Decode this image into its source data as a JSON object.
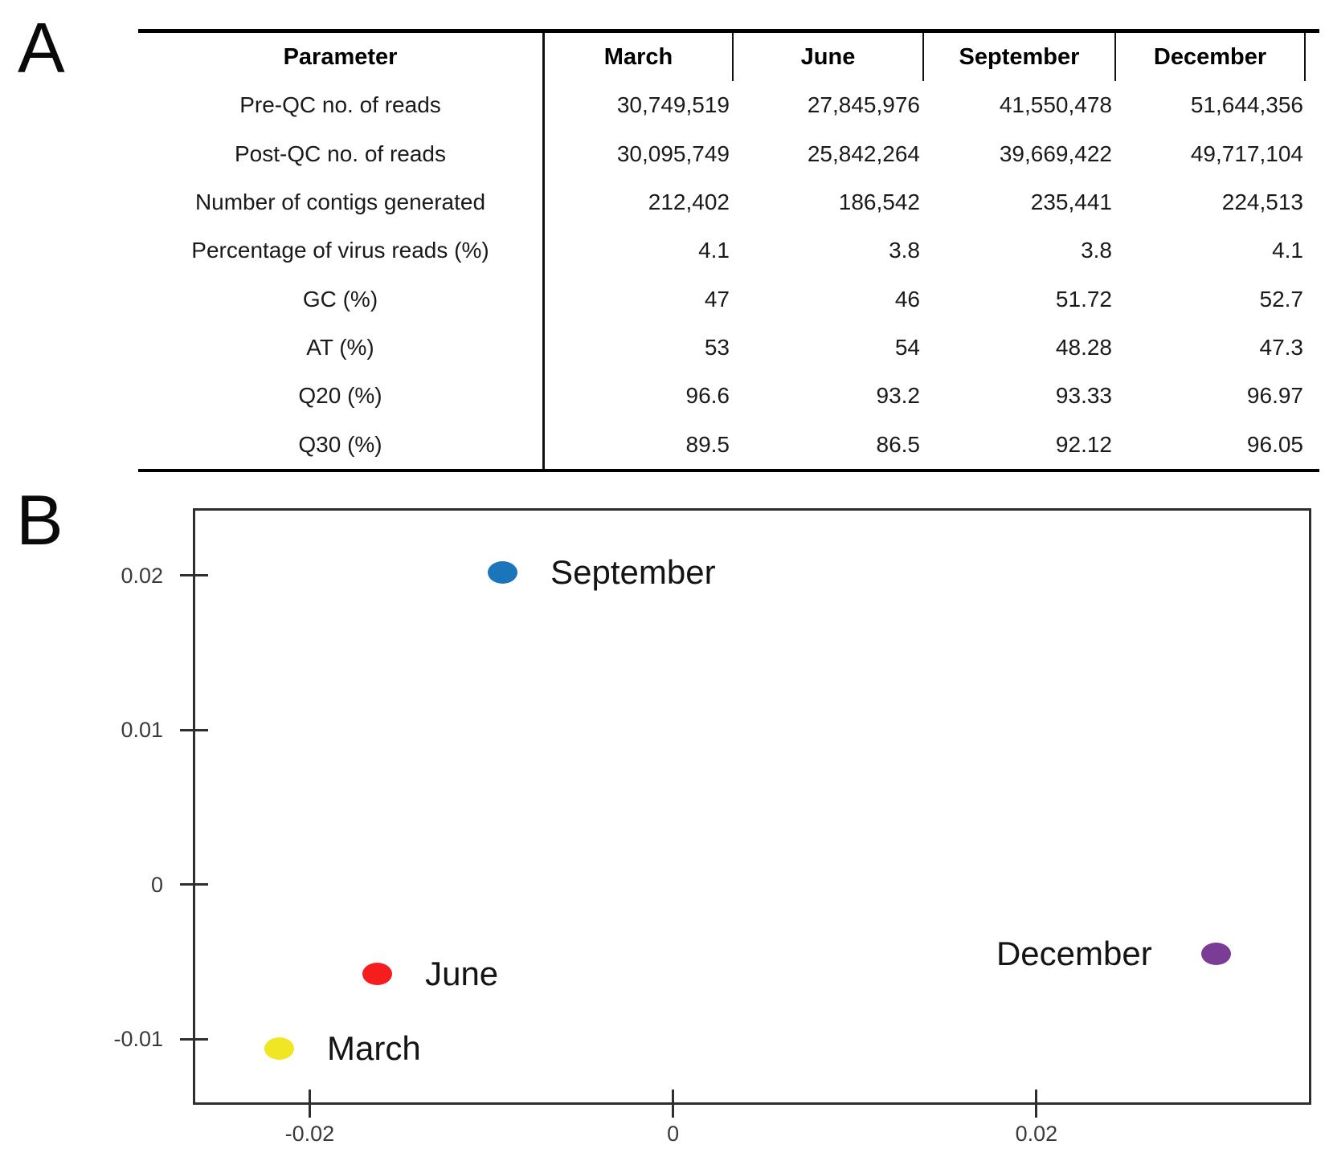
{
  "panel_a": {
    "label": "A"
  },
  "panel_b": {
    "label": "B"
  },
  "table": {
    "columns": [
      "Parameter",
      "March",
      "June",
      "September",
      "December"
    ],
    "rows": [
      {
        "label": "Pre-QC no. of reads",
        "values": [
          "30,749,519",
          "27,845,976",
          "41,550,478",
          "51,644,356"
        ]
      },
      {
        "label": "Post-QC no. of reads",
        "values": [
          "30,095,749",
          "25,842,264",
          "39,669,422",
          "49,717,104"
        ]
      },
      {
        "label": "Number of contigs generated",
        "values": [
          "212,402",
          "186,542",
          "235,441",
          "224,513"
        ]
      },
      {
        "label": "Percentage of virus reads (%)",
        "values": [
          "4.1",
          "3.8",
          "3.8",
          "4.1"
        ]
      },
      {
        "label": "GC (%)",
        "values": [
          "47",
          "46",
          "51.72",
          "52.7"
        ]
      },
      {
        "label": "AT (%)",
        "values": [
          "53",
          "54",
          "48.28",
          "47.3"
        ]
      },
      {
        "label": "Q20 (%)",
        "values": [
          "96.6",
          "93.2",
          "93.33",
          "96.97"
        ]
      },
      {
        "label": "Q30 (%)",
        "values": [
          "89.5",
          "86.5",
          "92.12",
          "96.05"
        ]
      }
    ]
  },
  "chart_data": {
    "type": "scatter",
    "title": "",
    "xlabel": "",
    "ylabel": "",
    "grid": false,
    "legend_position": "none (points labeled inline)",
    "xlim": [
      -0.0263,
      0.035
    ],
    "ylim": [
      -0.0141,
      0.0242
    ],
    "xticks": [
      {
        "value": -0.02,
        "label": "-0.02"
      },
      {
        "value": 0,
        "label": "0"
      },
      {
        "value": 0.02,
        "label": "0.02"
      }
    ],
    "yticks": [
      {
        "value": 0.02,
        "label": "0.02"
      },
      {
        "value": 0.01,
        "label": "0.01"
      },
      {
        "value": 0,
        "label": "0"
      },
      {
        "value": -0.01,
        "label": "-0.01"
      }
    ],
    "points": [
      {
        "label": "September",
        "x": -0.0094,
        "y": 0.0202,
        "color": "#1b75bb",
        "label_side": "right"
      },
      {
        "label": "June",
        "x": -0.0163,
        "y": -0.0058,
        "color": "#f51d1d",
        "label_side": "right"
      },
      {
        "label": "March",
        "x": -0.0217,
        "y": -0.0106,
        "color": "#f0e623",
        "label_side": "right"
      },
      {
        "label": "December",
        "x": 0.0299,
        "y": -0.0045,
        "color": "#7b3c96",
        "label_side": "left"
      }
    ],
    "axis_color": "#2e2e2e"
  }
}
